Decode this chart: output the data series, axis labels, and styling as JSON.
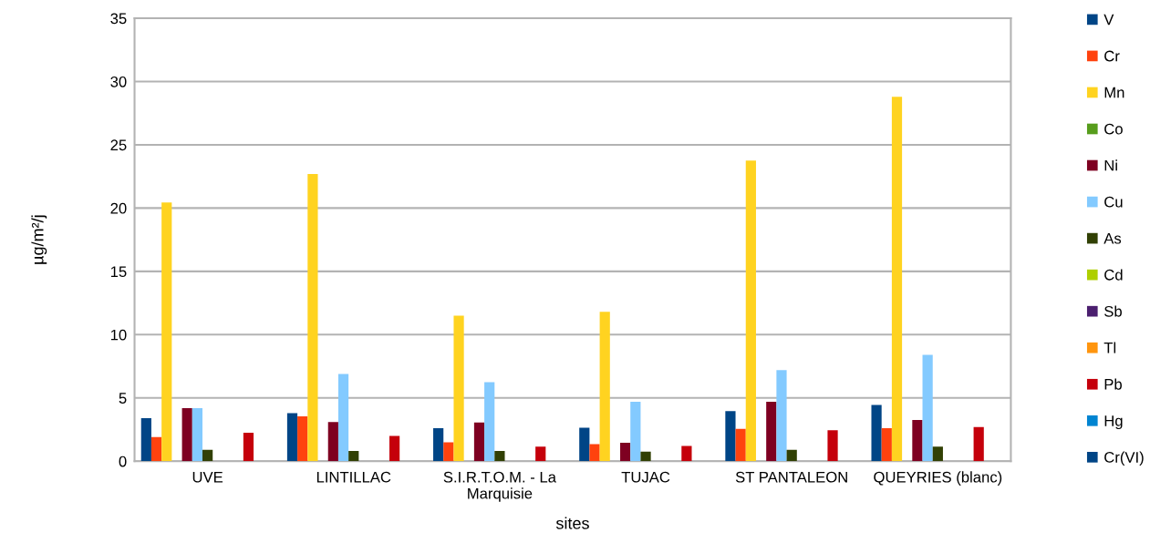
{
  "chart_data": {
    "type": "bar",
    "xlabel": "sites",
    "ylabel": "µg/m²/j",
    "categories": [
      "UVE",
      "LINTILLAC",
      "S.I.R.T.O.M. - La\nMarquisie",
      "TUJAC",
      "ST PANTALEON",
      "QUEYRIES (blanc)"
    ],
    "ylim": [
      0,
      35
    ],
    "yticks": [
      0,
      5,
      10,
      15,
      20,
      25,
      30,
      35
    ],
    "grid": "y",
    "legend": "right",
    "series": [
      {
        "name": "V",
        "color": "#004586",
        "values": [
          3.4,
          3.8,
          2.6,
          2.65,
          3.95,
          4.45
        ]
      },
      {
        "name": "Cr",
        "color": "#ff420e",
        "values": [
          1.9,
          3.55,
          1.5,
          1.35,
          2.55,
          2.6
        ]
      },
      {
        "name": "Mn",
        "color": "#ffd320",
        "values": [
          20.45,
          22.7,
          11.5,
          11.8,
          23.75,
          28.8
        ]
      },
      {
        "name": "Co",
        "color": "#579d1c",
        "values": [
          null,
          null,
          null,
          null,
          null,
          null
        ]
      },
      {
        "name": "Ni",
        "color": "#7e0021",
        "values": [
          4.2,
          3.1,
          3.05,
          1.45,
          4.7,
          3.25
        ]
      },
      {
        "name": "Cu",
        "color": "#83caff",
        "values": [
          4.2,
          6.9,
          6.25,
          4.7,
          7.2,
          8.4
        ]
      },
      {
        "name": "As",
        "color": "#314004",
        "values": [
          0.9,
          0.8,
          0.8,
          0.75,
          0.9,
          1.15
        ]
      },
      {
        "name": "Cd",
        "color": "#aecf00",
        "values": [
          null,
          null,
          null,
          null,
          null,
          null
        ]
      },
      {
        "name": "Sb",
        "color": "#4b1f6f",
        "values": [
          null,
          null,
          null,
          null,
          null,
          null
        ]
      },
      {
        "name": "Tl",
        "color": "#ff950e",
        "values": [
          null,
          null,
          null,
          null,
          null,
          null
        ]
      },
      {
        "name": "Pb",
        "color": "#c5000b",
        "values": [
          2.25,
          2.0,
          1.15,
          1.2,
          2.45,
          2.7
        ]
      },
      {
        "name": "Hg",
        "color": "#0084d1",
        "values": [
          null,
          null,
          null,
          null,
          null,
          null
        ]
      },
      {
        "name": "Cr(VI)",
        "color": "#004586",
        "values": [
          null,
          null,
          null,
          null,
          null,
          null
        ]
      }
    ]
  }
}
